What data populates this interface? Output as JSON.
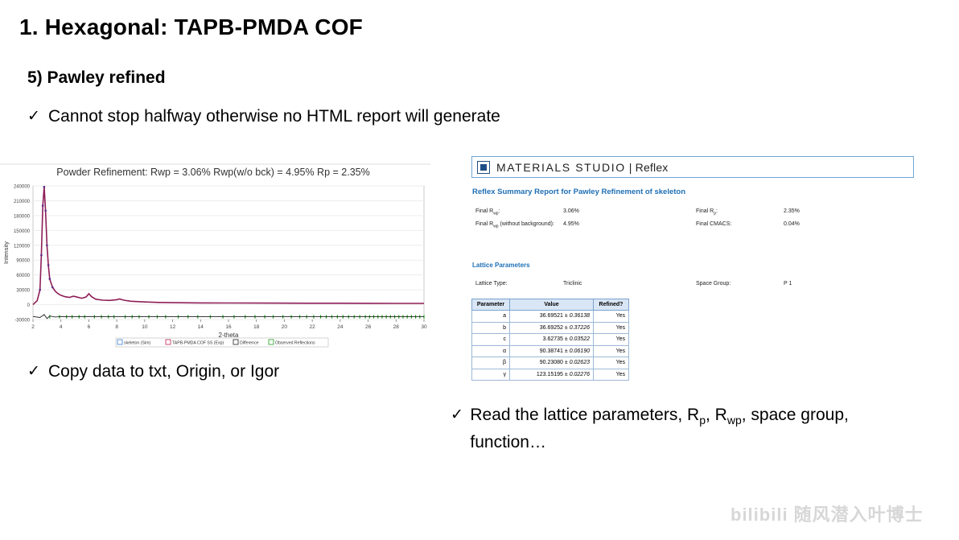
{
  "slide": {
    "title": "1. Hexagonal: TAPB-PMDA COF",
    "subtitle": "5) Pawley refined",
    "check": "✓",
    "bullet1": "Cannot stop halfway otherwise no HTML report will generate",
    "bullet2": "Copy data to txt, Origin, or Igor",
    "bullet3": {
      "pre": "Read the lattice parameters, R",
      "sub1": "p",
      "mid": ", R",
      "sub2": "wp",
      "post": ", space group, function…"
    }
  },
  "chart_data": {
    "type": "line",
    "title": "Powder Refinement:  Rwp = 3.06%   Rwp(w/o bck) = 4.95%   Rp = 2.35%",
    "xlabel": "2-theta",
    "ylabel": "Intensity",
    "xlim": [
      2,
      30
    ],
    "ylim": [
      -30000,
      240000
    ],
    "xticks": [
      "2",
      "4",
      "6",
      "8",
      "10",
      "12",
      "14",
      "16",
      "18",
      "20",
      "22",
      "24",
      "26",
      "28",
      "30"
    ],
    "yticks": [
      "240000",
      "210000",
      "180000",
      "150000",
      "120000",
      "90000",
      "60000",
      "30000",
      "0",
      "-30000"
    ],
    "legend": [
      "skeleton (Sim)",
      "TAPB-PMDA COF SS (Exp)",
      "Difference",
      "Observed Reflections"
    ],
    "series": [
      {
        "name": "TAPB-PMDA COF SS (Exp)",
        "color": "#8e1e57",
        "x": [
          2.0,
          2.3,
          2.5,
          2.6,
          2.7,
          2.8,
          2.9,
          3.0,
          3.1,
          3.2,
          3.4,
          3.6,
          3.8,
          4.0,
          4.3,
          4.6,
          4.9,
          5.2,
          5.5,
          5.8,
          6.0,
          6.2,
          6.5,
          7.0,
          7.5,
          8.0,
          8.2,
          8.5,
          9.0,
          10,
          11,
          12,
          14,
          16,
          18,
          20,
          22,
          24,
          26,
          28,
          30
        ],
        "y": [
          0,
          8000,
          30000,
          100000,
          200000,
          238000,
          190000,
          120000,
          80000,
          52000,
          35000,
          27000,
          22000,
          19000,
          16000,
          14500,
          17000,
          15000,
          13000,
          15500,
          22000,
          16000,
          11000,
          9000,
          8500,
          10000,
          11500,
          9000,
          7000,
          5500,
          4500,
          4000,
          3500,
          3300,
          3100,
          3000,
          2900,
          2800,
          2700,
          2600,
          2500
        ]
      },
      {
        "name": "Difference",
        "color": "#222222",
        "x": [
          2,
          2.5,
          2.8,
          3.0,
          3.2,
          3.6,
          4,
          5,
          6,
          8,
          10,
          15,
          20,
          25,
          30
        ],
        "y": [
          -24000,
          -26000,
          -20000,
          -28000,
          -23000,
          -25000,
          -24000,
          -24500,
          -24000,
          -24500,
          -24500,
          -24500,
          -24500,
          -24500,
          -24500
        ]
      }
    ],
    "reflections": [
      3.2,
      3.9,
      4.4,
      4.8,
      5.3,
      5.7,
      6.4,
      6.9,
      7.4,
      7.8,
      8.6,
      9.1,
      9.6,
      10.3,
      10.9,
      11.5,
      12.4,
      13.1,
      13.8,
      14.7,
      15.6,
      16.4,
      17.2,
      17.9,
      18.6,
      19.2,
      19.9,
      20.5,
      21.1,
      21.6,
      22.1,
      22.6,
      23.0,
      23.4,
      23.8,
      24.2,
      24.6,
      25.0,
      25.4,
      25.8,
      26.1,
      26.4,
      26.7,
      27.0,
      27.3,
      27.6,
      27.9,
      28.2,
      28.5,
      28.8,
      29.1,
      29.4,
      29.7,
      30.0
    ]
  },
  "report": {
    "brand": "MATERIALS STUDIO",
    "product": "| Reflex",
    "heading": "Reflex Summary Report for Pawley Refinement of skeleton",
    "final_rwp_label": "Final R",
    "final_rwp_sub": "wp",
    "final_rwp_value": "3.06%",
    "final_rwp_nb_label": "(without background):",
    "final_rwp_nb_value": "4.95%",
    "final_rp_label": "Final R",
    "final_rp_sub": "p",
    "final_rp_value": "2.35%",
    "final_cmacs_label": "Final CMACS:",
    "final_cmacs_value": "0.04%",
    "lattice_heading": "Lattice Parameters",
    "lattice_type_label": "Lattice Type:",
    "lattice_type_value": "Triclinic",
    "space_group_label": "Space Group:",
    "space_group_value": "P 1",
    "table_headers": [
      "Parameter",
      "Value",
      "Refined?"
    ],
    "rows": [
      {
        "param": "a",
        "value": "36.69521",
        "err": "0.36138",
        "refined": "Yes"
      },
      {
        "param": "b",
        "value": "36.69252",
        "err": "0.37226",
        "refined": "Yes"
      },
      {
        "param": "c",
        "value": "3.62735",
        "err": "0.03522",
        "refined": "Yes"
      },
      {
        "param": "α",
        "value": "90.38741",
        "err": "0.06190",
        "refined": "Yes"
      },
      {
        "param": "β",
        "value": "90.23080",
        "err": "0.02623",
        "refined": "Yes"
      },
      {
        "param": "γ",
        "value": "123.15195",
        "err": "0.02276",
        "refined": "Yes"
      }
    ]
  },
  "watermark": "bilibili 随风潜入叶博士"
}
